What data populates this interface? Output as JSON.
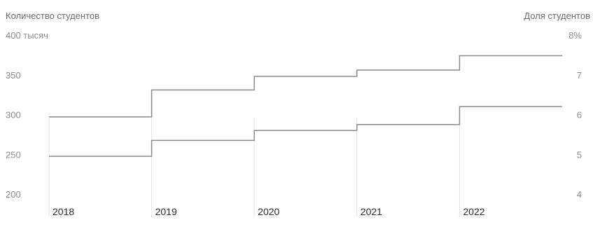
{
  "chart_data": {
    "type": "line",
    "step": true,
    "left_axis_title": "Количество студентов",
    "right_axis_title": "Доля студентов",
    "categories": [
      "2018",
      "2019",
      "2020",
      "2021",
      "2022"
    ],
    "left_ticks": [
      "400 тысяч",
      "350",
      "300",
      "250",
      "200"
    ],
    "left_tick_values": [
      400,
      350,
      300,
      250,
      200
    ],
    "right_ticks": [
      "8%",
      "7",
      "6",
      "5",
      "4"
    ],
    "right_tick_values": [
      8,
      7,
      6,
      5,
      4
    ],
    "ylim_left": [
      200,
      400
    ],
    "ylim_right": [
      4,
      8
    ],
    "series": [
      {
        "axis": "left",
        "values": [
          297,
          331,
          348,
          356,
          374
        ]
      },
      {
        "axis": "right",
        "values": [
          4.95,
          5.35,
          5.6,
          5.75,
          6.2
        ]
      }
    ],
    "colors": {
      "line": "#8a8a8a",
      "grid": "#e3e3e3"
    }
  }
}
